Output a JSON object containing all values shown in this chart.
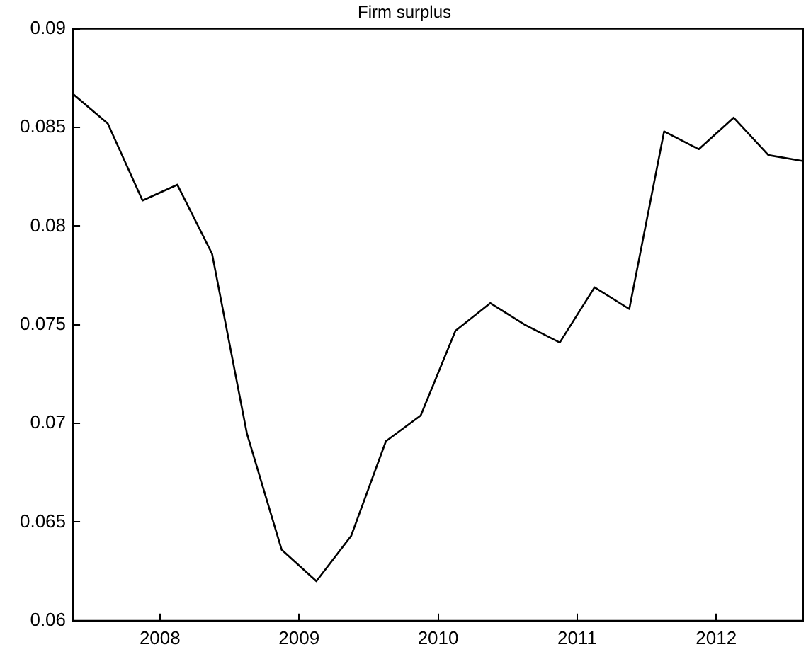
{
  "chart_data": {
    "type": "line",
    "title": "Firm surplus",
    "x": [
      2007.375,
      2007.625,
      2007.875,
      2008.125,
      2008.375,
      2008.625,
      2008.875,
      2009.125,
      2009.375,
      2009.625,
      2009.875,
      2010.125,
      2010.375,
      2010.625,
      2010.875,
      2011.125,
      2011.375,
      2011.625,
      2011.875,
      2012.125,
      2012.375,
      2012.625
    ],
    "series": [
      {
        "color": "#000000",
        "values": [
          0.0867,
          0.0852,
          0.0813,
          0.0821,
          0.0786,
          0.0695,
          0.0636,
          0.062,
          0.0643,
          0.0691,
          0.0704,
          0.0747,
          0.0761,
          0.075,
          0.0741,
          0.0769,
          0.0758,
          0.0848,
          0.0839,
          0.0855,
          0.0836,
          0.0833
        ]
      }
    ],
    "xlim": [
      2007.375,
      2012.625
    ],
    "xticks": [
      2008,
      2009,
      2010,
      2011,
      2012
    ],
    "ylim": [
      0.06,
      0.09
    ],
    "yticks": [
      0.06,
      0.065,
      0.07,
      0.075,
      0.08,
      0.085,
      0.09
    ],
    "grid": false,
    "legend": false,
    "marker": "none",
    "line_style": "solid"
  }
}
